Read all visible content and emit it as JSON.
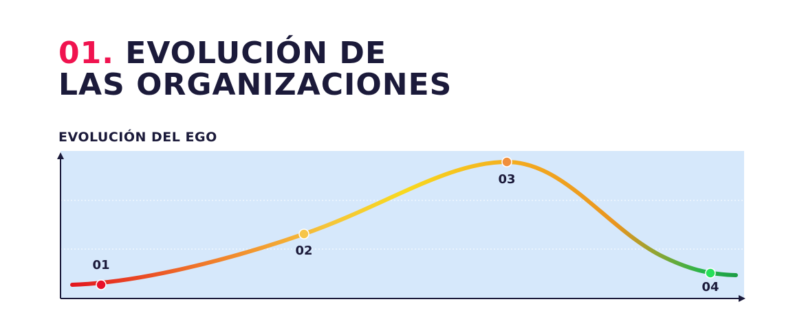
{
  "header": {
    "number": "01.",
    "title_line1": "EVOLUCIÓN DE",
    "title_line2": "LAS ORGANIZACIONES"
  },
  "chart": {
    "title": "EVOLUCIÓN DEL EGO",
    "points": [
      "01",
      "02",
      "03",
      "04"
    ]
  }
}
